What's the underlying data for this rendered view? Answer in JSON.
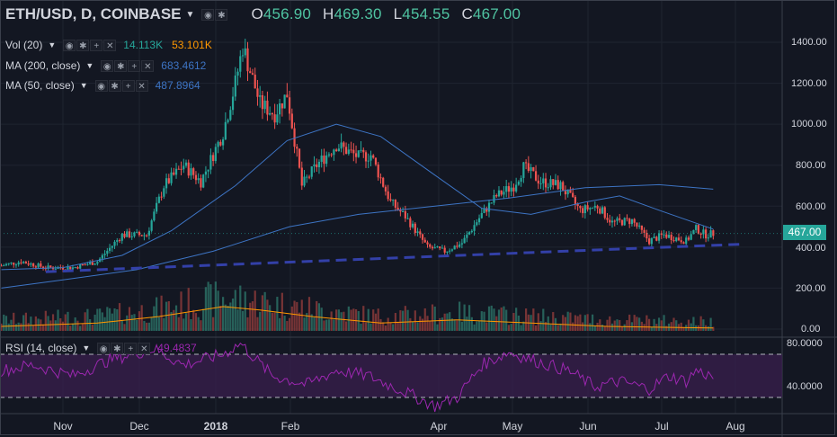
{
  "header": {
    "symbol": "ETH/USD, D, COINBASE",
    "open_label": "O",
    "open": "456.90",
    "high_label": "H",
    "high": "469.30",
    "low_label": "L",
    "low": "454.55",
    "close_label": "C",
    "close": "467.00"
  },
  "indicators": {
    "vol": {
      "name": "Vol (20)",
      "value1": "14.113K",
      "value2": "53.101K",
      "color1": "#26a69a",
      "color2": "#ff9800"
    },
    "ma200": {
      "name": "MA (200, close)",
      "value": "683.4612",
      "color": "#3d74c4"
    },
    "ma50": {
      "name": "MA (50, close)",
      "value": "487.8964",
      "color": "#3d74c4"
    },
    "rsi": {
      "name": "RSI (14, close)",
      "value": "49.4837",
      "color": "#9c27b0"
    }
  },
  "current_price": "467.00",
  "colors": {
    "up": "#26a69a",
    "down": "#ef5350",
    "background": "#131722",
    "trendline": "#3340a8"
  },
  "icons": [
    "eye-icon",
    "gear-icon",
    "plus-icon",
    "close-icon"
  ],
  "chart_data": {
    "type": "candlestick",
    "x_ticks": [
      "Nov",
      "Dec",
      "2018",
      "Feb",
      "Apr",
      "May",
      "Jun",
      "Jul",
      "Aug"
    ],
    "price_ticks": [
      "1400.00",
      "1200.00",
      "1000.00",
      "800.00",
      "600.00",
      "400.00",
      "200.00",
      "0.00"
    ],
    "price_range": [
      0,
      1400
    ],
    "rsi_ticks": [
      "80.0000",
      "40.0000"
    ],
    "rsi_range": [
      20,
      85
    ],
    "rsi_bands": [
      70,
      30
    ],
    "close_path": [
      [
        "2017-10-07",
        310
      ],
      [
        "2017-10-15",
        330
      ],
      [
        "2017-10-25",
        300
      ],
      [
        "2017-11-05",
        300
      ],
      [
        "2017-11-15",
        330
      ],
      [
        "2017-11-25",
        460
      ],
      [
        "2017-12-05",
        460
      ],
      [
        "2017-12-12",
        700
      ],
      [
        "2017-12-20",
        800
      ],
      [
        "2017-12-27",
        720
      ],
      [
        "2018-01-05",
        960
      ],
      [
        "2018-01-10",
        1200
      ],
      [
        "2018-01-13",
        1380
      ],
      [
        "2018-01-20",
        1100
      ],
      [
        "2018-01-26",
        1050
      ],
      [
        "2018-01-31",
        1150
      ],
      [
        "2018-02-06",
        700
      ],
      [
        "2018-02-12",
        800
      ],
      [
        "2018-02-20",
        900
      ],
      [
        "2018-03-01",
        840
      ],
      [
        "2018-03-06",
        850
      ],
      [
        "2018-03-14",
        620
      ],
      [
        "2018-03-20",
        550
      ],
      [
        "2018-03-29",
        400
      ],
      [
        "2018-04-05",
        380
      ],
      [
        "2018-04-12",
        420
      ],
      [
        "2018-04-20",
        560
      ],
      [
        "2018-04-26",
        650
      ],
      [
        "2018-05-03",
        700
      ],
      [
        "2018-05-07",
        790
      ],
      [
        "2018-05-14",
        720
      ],
      [
        "2018-05-22",
        700
      ],
      [
        "2018-05-30",
        580
      ],
      [
        "2018-06-06",
        600
      ],
      [
        "2018-06-12",
        520
      ],
      [
        "2018-06-20",
        530
      ],
      [
        "2018-06-27",
        430
      ],
      [
        "2018-07-03",
        460
      ],
      [
        "2018-07-12",
        430
      ],
      [
        "2018-07-16",
        490
      ],
      [
        "2018-07-20",
        460
      ],
      [
        "2018-07-23",
        467
      ]
    ],
    "ma200_path": [
      [
        "2017-10-07",
        200
      ],
      [
        "2017-11-01",
        240
      ],
      [
        "2017-12-01",
        290
      ],
      [
        "2018-01-01",
        380
      ],
      [
        "2018-02-01",
        500
      ],
      [
        "2018-03-01",
        560
      ],
      [
        "2018-04-01",
        600
      ],
      [
        "2018-05-01",
        640
      ],
      [
        "2018-06-01",
        690
      ],
      [
        "2018-07-01",
        705
      ],
      [
        "2018-07-23",
        683
      ]
    ],
    "ma50_path": [
      [
        "2017-10-07",
        290
      ],
      [
        "2017-11-01",
        300
      ],
      [
        "2017-11-25",
        360
      ],
      [
        "2017-12-15",
        480
      ],
      [
        "2018-01-10",
        700
      ],
      [
        "2018-01-31",
        920
      ],
      [
        "2018-02-20",
        1000
      ],
      [
        "2018-03-10",
        940
      ],
      [
        "2018-03-31",
        760
      ],
      [
        "2018-04-20",
        590
      ],
      [
        "2018-05-10",
        560
      ],
      [
        "2018-06-01",
        620
      ],
      [
        "2018-06-15",
        650
      ],
      [
        "2018-07-01",
        580
      ],
      [
        "2018-07-23",
        488
      ]
    ],
    "trendline": [
      [
        "2017-10-25",
        280
      ],
      [
        "2018-08-05",
        415
      ]
    ],
    "volume_path": [
      [
        "2017-10-07",
        30
      ],
      [
        "2017-11-15",
        40
      ],
      [
        "2017-12-10",
        60
      ],
      [
        "2018-01-05",
        90
      ],
      [
        "2018-01-20",
        80
      ],
      [
        "2018-02-10",
        60
      ],
      [
        "2018-03-10",
        40
      ],
      [
        "2018-04-10",
        50
      ],
      [
        "2018-05-10",
        40
      ],
      [
        "2018-06-10",
        30
      ],
      [
        "2018-07-23",
        25
      ]
    ],
    "rsi_path": [
      [
        "2017-10-07",
        55
      ],
      [
        "2017-10-20",
        60
      ],
      [
        "2017-11-05",
        50
      ],
      [
        "2017-11-20",
        65
      ],
      [
        "2017-12-08",
        75
      ],
      [
        "2017-12-20",
        60
      ],
      [
        "2018-01-05",
        70
      ],
      [
        "2018-01-12",
        80
      ],
      [
        "2018-01-25",
        50
      ],
      [
        "2018-02-08",
        42
      ],
      [
        "2018-02-20",
        55
      ],
      [
        "2018-03-05",
        50
      ],
      [
        "2018-03-20",
        35
      ],
      [
        "2018-04-01",
        22
      ],
      [
        "2018-04-10",
        30
      ],
      [
        "2018-04-20",
        60
      ],
      [
        "2018-05-01",
        72
      ],
      [
        "2018-05-10",
        65
      ],
      [
        "2018-05-25",
        55
      ],
      [
        "2018-06-05",
        40
      ],
      [
        "2018-06-15",
        45
      ],
      [
        "2018-06-27",
        38
      ],
      [
        "2018-07-05",
        50
      ],
      [
        "2018-07-12",
        45
      ],
      [
        "2018-07-16",
        55
      ],
      [
        "2018-07-23",
        49
      ]
    ]
  }
}
